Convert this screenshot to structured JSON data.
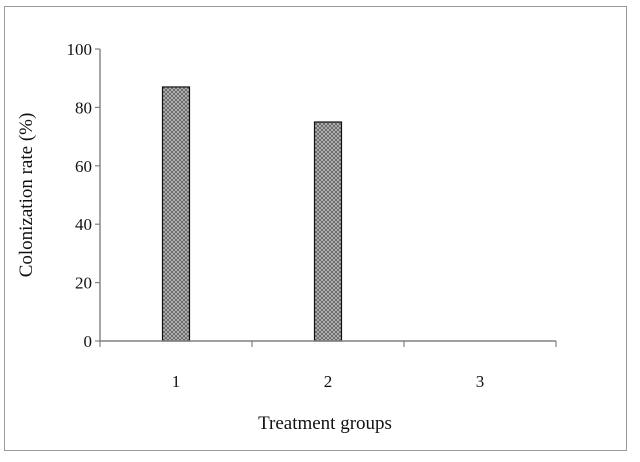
{
  "chart_data": {
    "type": "bar",
    "categories": [
      "1",
      "2",
      "3"
    ],
    "values": [
      87,
      75,
      0
    ],
    "title": "",
    "xlabel": "Treatment groups",
    "ylabel": "Colonization rate (%)",
    "ylim": [
      0,
      100
    ],
    "yticks": [
      "0",
      "20",
      "40",
      "60",
      "80",
      "100"
    ],
    "grid": false,
    "legend": false,
    "bar_fill": "#a8a8a8",
    "bar_pattern": "crosshatch",
    "bar_edge_color": "#111111",
    "axis_color": "#808080",
    "frame_color": "#9a9a9a"
  }
}
